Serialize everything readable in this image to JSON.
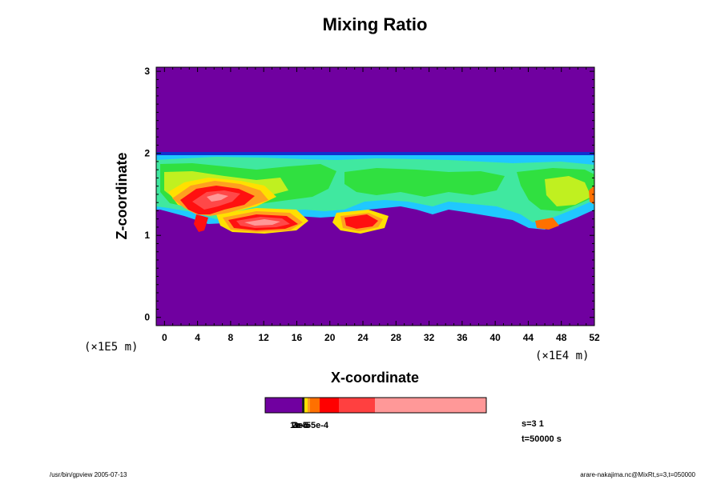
{
  "chart_data": {
    "type": "heatmap",
    "title": "Mixing Ratio",
    "xlabel": "X-coordinate",
    "ylabel": "Z-coordinate",
    "x_unit": "(×1E4 m)",
    "y_unit": "(×1E5 m)",
    "xlim": [
      -1,
      52
    ],
    "ylim": [
      -0.1,
      3.05
    ],
    "x_ticks": [
      "0",
      "4",
      "8",
      "12",
      "16",
      "20",
      "24",
      "28",
      "32",
      "36",
      "40",
      "44",
      "48",
      "52"
    ],
    "y_ticks": [
      "0",
      "1",
      "2",
      "3"
    ],
    "colorbar": {
      "colors": [
        "#7000a0",
        "#ffe000",
        "#ffa020",
        "#ff7000",
        "#ff0000",
        "#ff4040",
        "#ff9898"
      ],
      "labels_overlapping": [
        "1e-5",
        "2e-5",
        "3e-5",
        "5e-4"
      ]
    },
    "info": {
      "slice": "s=3 1",
      "time": "t=50000 s"
    }
  },
  "footer": {
    "left": "/usr/bin/gpview 2005-07-13",
    "right": "arare-nakajima.nc@MixRt,s=3,t=050000"
  }
}
